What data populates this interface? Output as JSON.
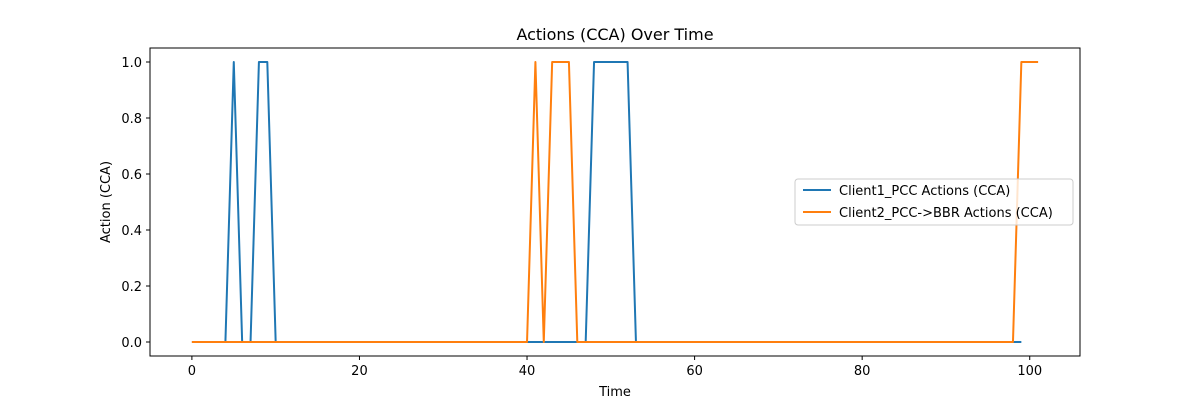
{
  "chart_data": {
    "type": "line",
    "title": "Actions (CCA) Over Time",
    "xlabel": "Time",
    "ylabel": "Action (CCA)",
    "xlim": [
      -5,
      106
    ],
    "ylim": [
      -0.05,
      1.05
    ],
    "xticks": [
      0,
      20,
      40,
      60,
      80,
      100
    ],
    "xtick_labels": [
      "0",
      "20",
      "40",
      "60",
      "80",
      "100"
    ],
    "yticks": [
      0.0,
      0.2,
      0.4,
      0.6,
      0.8,
      1.0
    ],
    "ytick_labels": [
      "0.0",
      "0.2",
      "0.4",
      "0.6",
      "0.8",
      "1.0"
    ],
    "grid": false,
    "legend_position": "center-right",
    "series": [
      {
        "name": "Client1_PCC Actions (CCA)",
        "color": "#1f77b4",
        "x": [
          0,
          4,
          5,
          6,
          7,
          8,
          9,
          10,
          47,
          48,
          52,
          53,
          99
        ],
        "y": [
          0,
          0,
          1,
          0,
          0,
          1,
          1,
          0,
          0,
          1,
          1,
          0,
          0
        ]
      },
      {
        "name": "Client2_PCC->BBR Actions (CCA)",
        "color": "#ff7f0e",
        "x": [
          0,
          40,
          41,
          42,
          43,
          45,
          46,
          98,
          99,
          101
        ],
        "y": [
          0,
          0,
          1,
          0,
          1,
          1,
          0,
          0,
          1,
          1
        ]
      }
    ]
  }
}
